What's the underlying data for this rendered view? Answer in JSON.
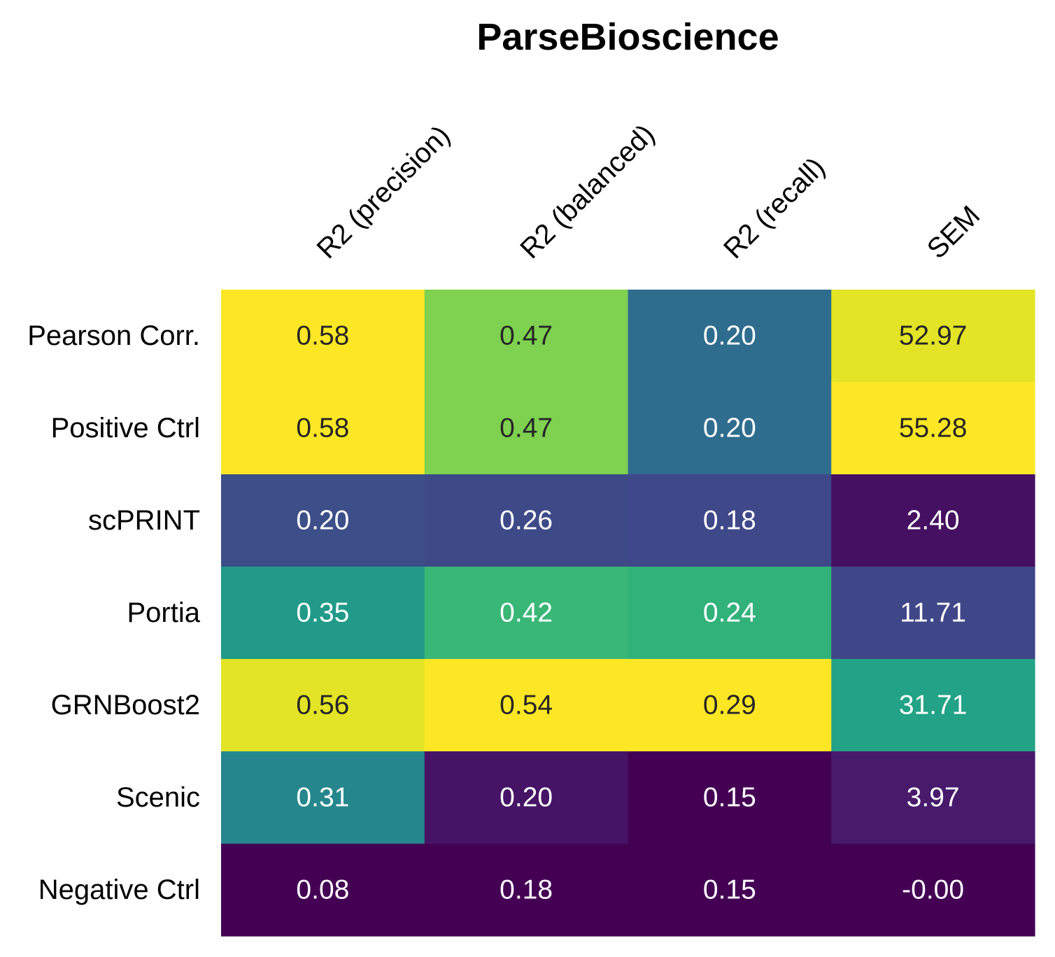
{
  "chart_data": {
    "type": "heatmap",
    "title": "ParseBioscience",
    "columns": [
      "R2 (precision)",
      "R2 (balanced)",
      "R2 (recall)",
      "SEM"
    ],
    "rows": [
      "Pearson Corr.",
      "Positive Ctrl",
      "scPRINT",
      "Portia",
      "GRNBoost2",
      "Scenic",
      "Negative Ctrl"
    ],
    "values": [
      [
        0.58,
        0.47,
        0.2,
        52.97
      ],
      [
        0.58,
        0.47,
        0.2,
        55.28
      ],
      [
        0.2,
        0.26,
        0.18,
        2.4
      ],
      [
        0.35,
        0.42,
        0.24,
        11.71
      ],
      [
        0.56,
        0.54,
        0.29,
        31.71
      ],
      [
        0.31,
        0.2,
        0.15,
        3.97
      ],
      [
        0.08,
        0.18,
        0.15,
        -0.0
      ]
    ],
    "cell_labels": [
      [
        "0.58",
        "0.47",
        "0.20",
        "52.97"
      ],
      [
        "0.58",
        "0.47",
        "0.20",
        "55.28"
      ],
      [
        "0.20",
        "0.26",
        "0.18",
        "2.40"
      ],
      [
        "0.35",
        "0.42",
        "0.24",
        "11.71"
      ],
      [
        "0.56",
        "0.54",
        "0.29",
        "31.71"
      ],
      [
        "0.31",
        "0.20",
        "0.15",
        "3.97"
      ],
      [
        "0.08",
        "0.18",
        "0.15",
        "-0.00"
      ]
    ],
    "colormap": "viridis",
    "color_scaling": "per-column",
    "colors": {
      "light_text": "#ffffff",
      "dark_text": "#262626"
    }
  }
}
